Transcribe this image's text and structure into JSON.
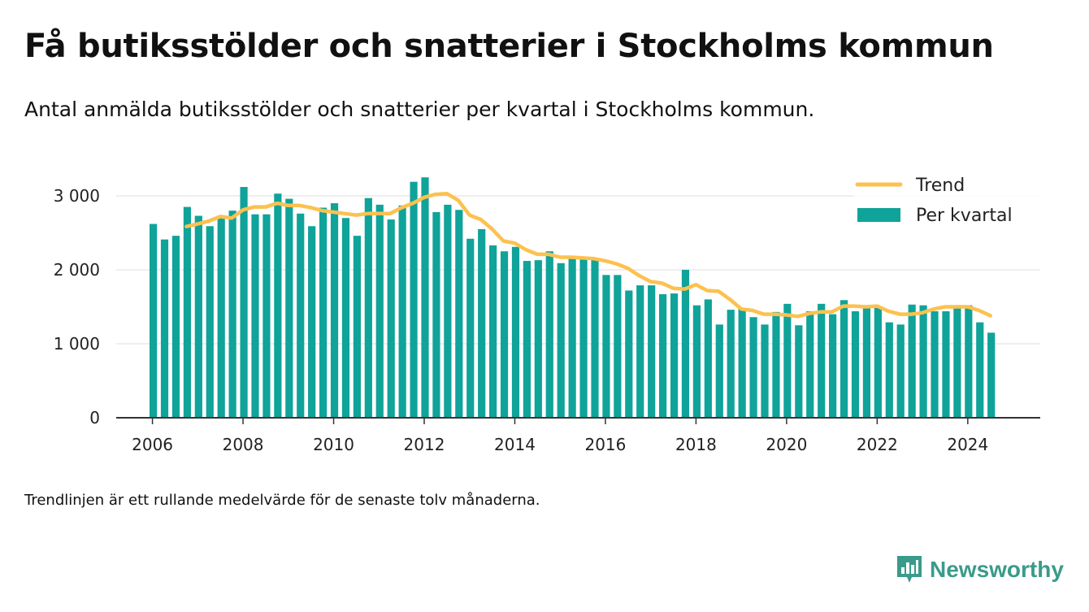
{
  "title": "Få butiksstölder och snatterier i Stockholms kommun",
  "subtitle": "Antal anmälda butiksstölder och snatterier per kvartal i Stockholms kommun.",
  "note": "Trendlinjen är ett rullande medelvärde för de senaste tolv månaderna.",
  "brand": {
    "name": "Newsworthy",
    "icon": "newsworthy-logo-icon"
  },
  "colors": {
    "bars": "#0fa39a",
    "trend": "#fcc14f",
    "grid": "#dddddd",
    "axis": "#333333",
    "brand": "#3a9b8a"
  },
  "chart_data": {
    "type": "bar",
    "x_ticks": [
      "2006",
      "2008",
      "2010",
      "2012",
      "2014",
      "2016",
      "2018",
      "2020",
      "2022",
      "2024"
    ],
    "y_ticks": [
      "0",
      "1 000",
      "2 000",
      "3 000"
    ],
    "ylim": [
      0,
      3450
    ],
    "xlim": [
      2005.2,
      2025.6
    ],
    "grid": true,
    "legend_position": "top-right",
    "series": [
      {
        "name": "Per kvartal",
        "type": "bar",
        "start_year": 2006.0,
        "step": 0.25,
        "values": [
          2620,
          2410,
          2460,
          2850,
          2730,
          2590,
          2720,
          2800,
          3120,
          2750,
          2750,
          3030,
          2960,
          2760,
          2590,
          2840,
          2900,
          2700,
          2460,
          2970,
          2880,
          2680,
          2870,
          3190,
          3250,
          2780,
          2880,
          2810,
          2420,
          2550,
          2330,
          2250,
          2310,
          2120,
          2130,
          2250,
          2090,
          2150,
          2160,
          2160,
          1930,
          1930,
          1720,
          1790,
          1790,
          1670,
          1680,
          2000,
          1520,
          1600,
          1260,
          1460,
          1480,
          1360,
          1260,
          1430,
          1540,
          1250,
          1440,
          1540,
          1400,
          1590,
          1440,
          1480,
          1500,
          1290,
          1260,
          1530,
          1520,
          1440,
          1440,
          1520,
          1520,
          1290,
          1150
        ]
      },
      {
        "name": "Trend",
        "type": "line",
        "x": [
          2006.75,
          2007.0,
          2007.25,
          2007.5,
          2007.75,
          2008.0,
          2008.25,
          2008.5,
          2008.75,
          2009.0,
          2009.25,
          2009.5,
          2009.75,
          2010.0,
          2010.25,
          2010.5,
          2010.75,
          2011.0,
          2011.25,
          2011.5,
          2011.75,
          2012.0,
          2012.25,
          2012.5,
          2012.75,
          2013.0,
          2013.25,
          2013.5,
          2013.75,
          2014.0,
          2014.25,
          2014.5,
          2014.75,
          2015.0,
          2015.25,
          2015.5,
          2015.75,
          2016.0,
          2016.25,
          2016.5,
          2016.75,
          2017.0,
          2017.25,
          2017.5,
          2017.75,
          2018.0,
          2018.25,
          2018.5,
          2018.75,
          2019.0,
          2019.25,
          2019.5,
          2019.75,
          2020.0,
          2020.25,
          2020.5,
          2020.75,
          2021.0,
          2021.25,
          2021.5,
          2021.75,
          2022.0,
          2022.25,
          2022.5,
          2022.75,
          2023.0,
          2023.25,
          2023.5,
          2023.75,
          2024.0,
          2024.25,
          2024.5
        ],
        "values": [
          2585,
          2620,
          2660,
          2720,
          2700,
          2810,
          2850,
          2850,
          2900,
          2870,
          2870,
          2840,
          2800,
          2780,
          2760,
          2740,
          2760,
          2760,
          2760,
          2840,
          2900,
          2980,
          3020,
          3030,
          2940,
          2740,
          2680,
          2550,
          2390,
          2360,
          2270,
          2210,
          2210,
          2170,
          2170,
          2160,
          2150,
          2120,
          2080,
          2020,
          1920,
          1840,
          1820,
          1750,
          1740,
          1800,
          1720,
          1710,
          1600,
          1470,
          1450,
          1400,
          1400,
          1390,
          1370,
          1410,
          1430,
          1430,
          1510,
          1510,
          1500,
          1510,
          1440,
          1400,
          1400,
          1420,
          1470,
          1500,
          1500,
          1500,
          1450,
          1380
        ]
      }
    ]
  }
}
